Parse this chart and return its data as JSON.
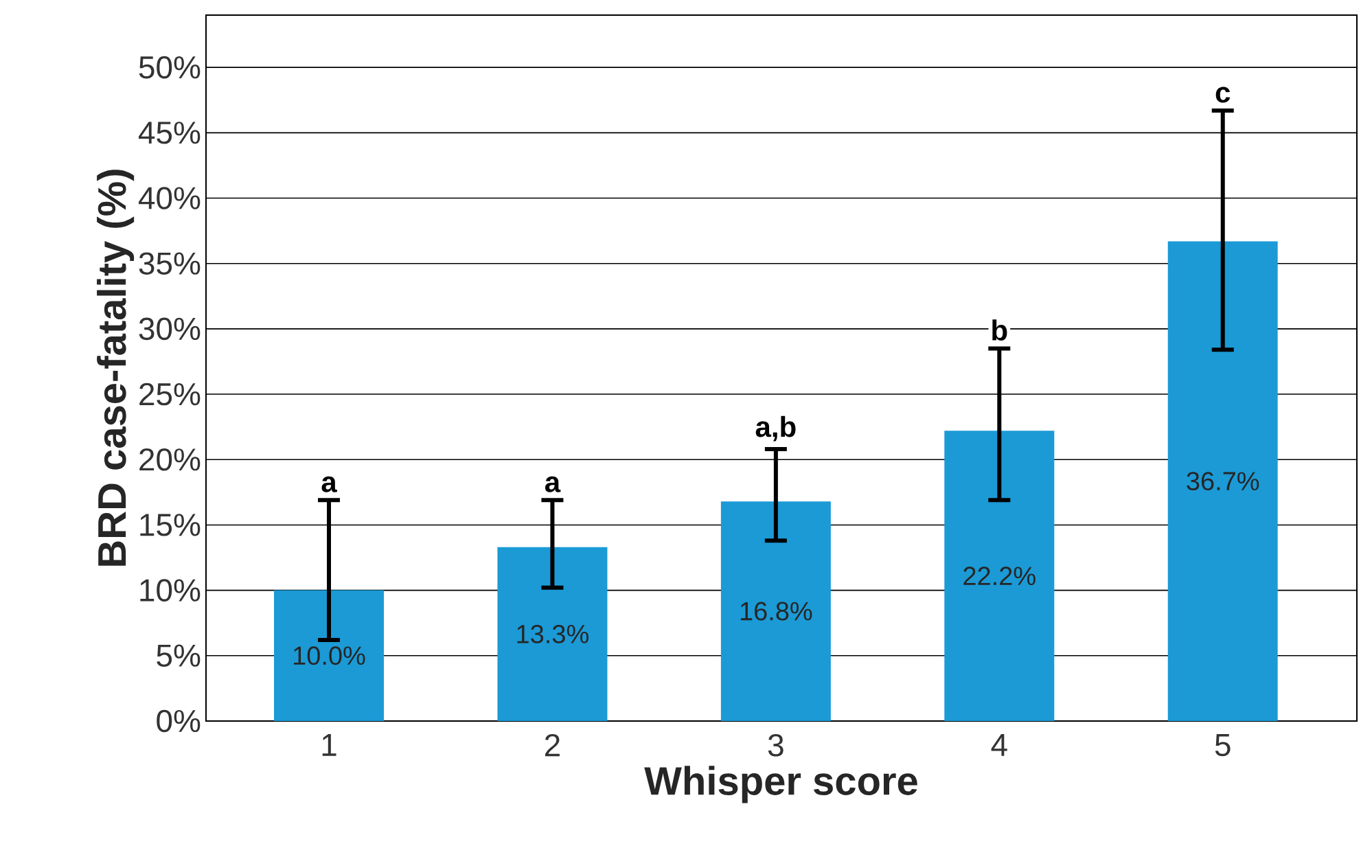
{
  "chart_data": {
    "type": "bar",
    "xlabel": "Whisper score",
    "ylabel": "BRD case-fatality (%)",
    "categories": [
      "1",
      "2",
      "3",
      "4",
      "5"
    ],
    "values": [
      10.0,
      13.3,
      16.8,
      22.2,
      36.7
    ],
    "value_labels": [
      "10.0%",
      "13.3%",
      "16.8%",
      "22.2%",
      "36.7%"
    ],
    "errors": [
      [
        6.2,
        16.9
      ],
      [
        10.2,
        16.9
      ],
      [
        13.8,
        20.8
      ],
      [
        16.9,
        28.5
      ],
      [
        28.4,
        46.7
      ]
    ],
    "color": "#1b9ad6",
    "ylim": [
      0,
      54
    ],
    "yticks": [
      {
        "value": 0,
        "label": "0%"
      },
      {
        "value": 5,
        "label": "5%"
      },
      {
        "value": 10,
        "label": "10%"
      },
      {
        "value": 15,
        "label": "15%"
      },
      {
        "value": 20,
        "label": "20%"
      },
      {
        "value": 25,
        "label": "25%"
      },
      {
        "value": 30,
        "label": "30%"
      },
      {
        "value": 35,
        "label": "35%"
      },
      {
        "value": 40,
        "label": "40%"
      },
      {
        "value": 45,
        "label": "45%"
      },
      {
        "value": 50,
        "label": "50%"
      }
    ],
    "grid": "y",
    "annotations": [
      {
        "text": "a",
        "x": "1",
        "y": 16.9
      },
      {
        "text": "a",
        "x": "2",
        "y": 16.9
      },
      {
        "text": "a,b",
        "x": "3",
        "y": 20.8
      },
      {
        "text": "b",
        "x": "4",
        "y": 28.5
      },
      {
        "text": "c",
        "x": "5",
        "y": 46.7
      }
    ]
  }
}
